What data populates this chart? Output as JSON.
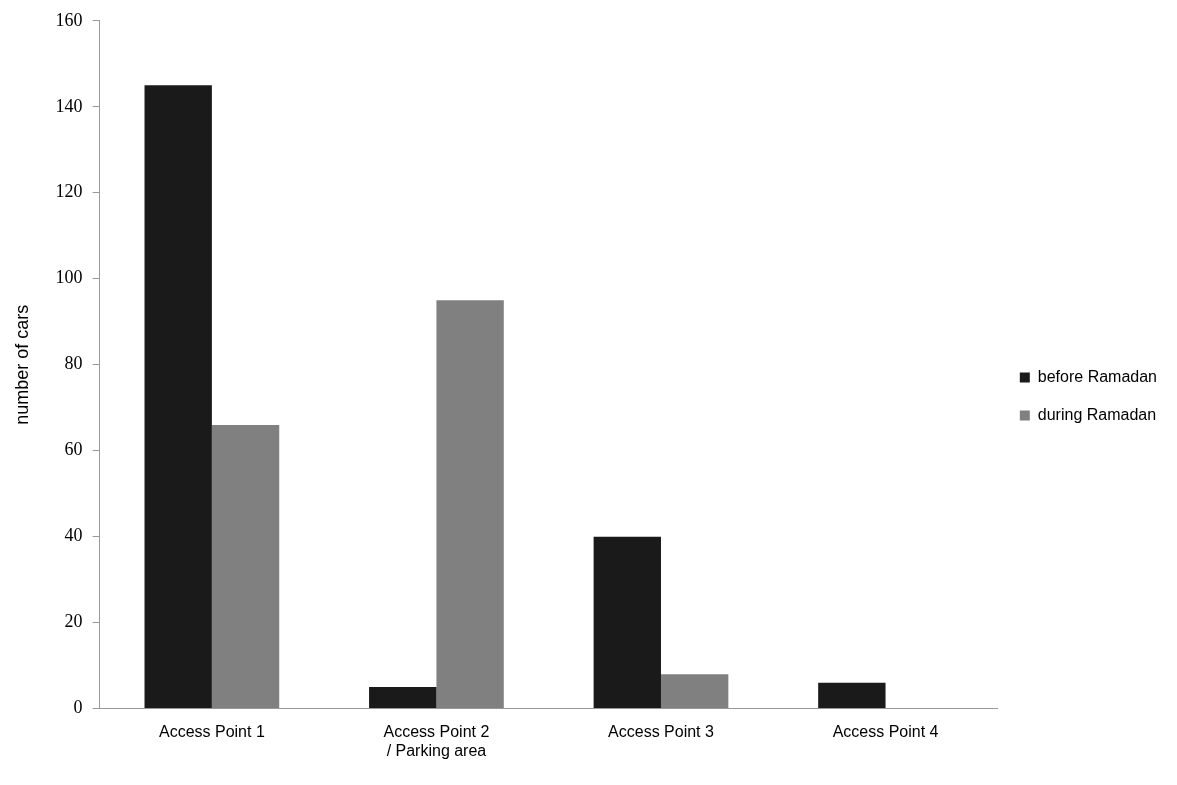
{
  "chart_data": {
    "type": "bar",
    "ylabel": "number of cars",
    "categories": [
      "Access Point 1",
      "Access Point 2 / Parking area",
      "Access Point 3",
      "Access Point 4"
    ],
    "series": [
      {
        "name": "before Ramadan",
        "color": "#1a1a1a",
        "values": [
          145,
          5,
          40,
          6
        ]
      },
      {
        "name": "during Ramadan",
        "color": "#808080",
        "values": [
          66,
          95,
          8,
          0
        ]
      }
    ],
    "ylim": [
      0,
      160
    ],
    "yticks": [
      0,
      20,
      40,
      60,
      80,
      100,
      120,
      140,
      160
    ],
    "grid": false,
    "legend": "right"
  }
}
